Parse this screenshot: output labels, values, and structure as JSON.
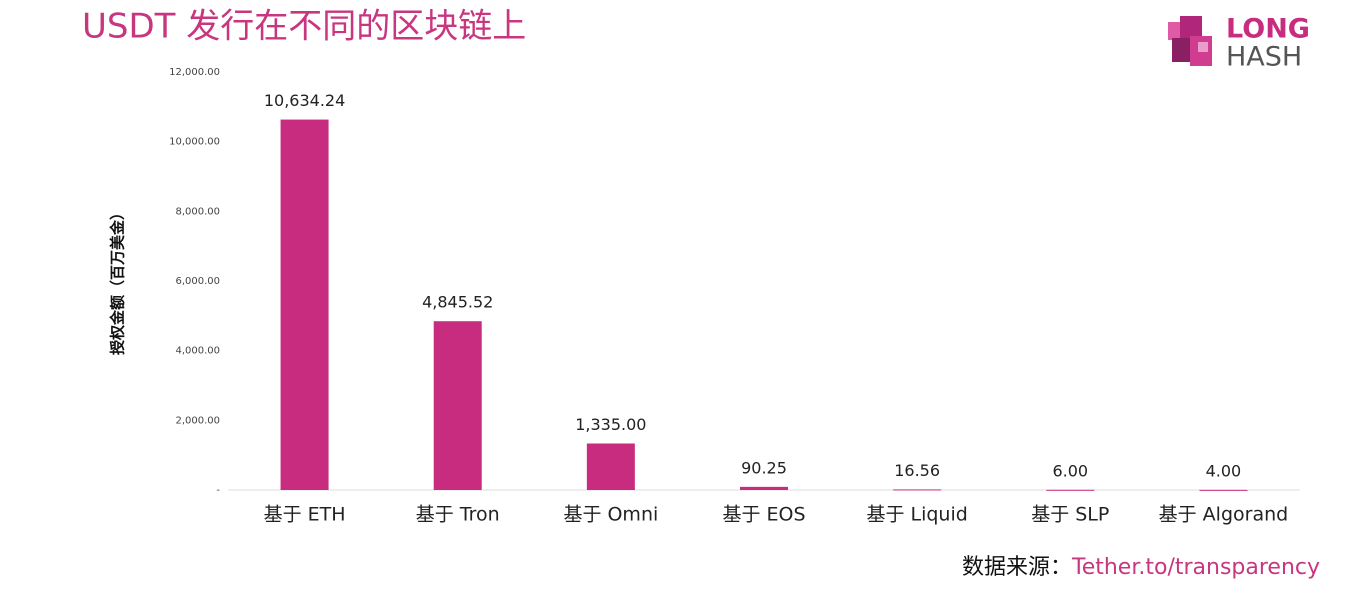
{
  "chart_data": {
    "type": "bar",
    "title": "USDT 发行在不同的区块链上",
    "y_label": "授权金额（百万美金）",
    "categories": [
      "基于 ETH",
      "基于 Tron",
      "基于 Omni",
      "基于 EOS",
      "基于 Liquid",
      "基于 SLP",
      "基于 Algorand"
    ],
    "values": [
      10634.24,
      4845.52,
      1335.0,
      90.25,
      16.56,
      6.0,
      4.0
    ],
    "value_labels": [
      "10,634.24",
      "4,845.52",
      "1,335.00",
      "90.25",
      "16.56",
      "6.00",
      "4.00"
    ],
    "color": "#c82c7e",
    "ylim": [
      0,
      12000
    ],
    "yticks": [
      {
        "value": 0,
        "label": "-"
      },
      {
        "value": 2000,
        "label": "2,000.00"
      },
      {
        "value": 4000,
        "label": "4,000.00"
      },
      {
        "value": 6000,
        "label": "6,000.00"
      },
      {
        "value": 8000,
        "label": "8,000.00"
      },
      {
        "value": 10000,
        "label": "10,000.00"
      },
      {
        "value": 12000,
        "label": "12,000.00"
      }
    ],
    "grid": false,
    "source_label": "数据来源：",
    "source_link": "Tether.to/transparency"
  },
  "logo": {
    "line1": "LONG",
    "line2": "HASH"
  }
}
